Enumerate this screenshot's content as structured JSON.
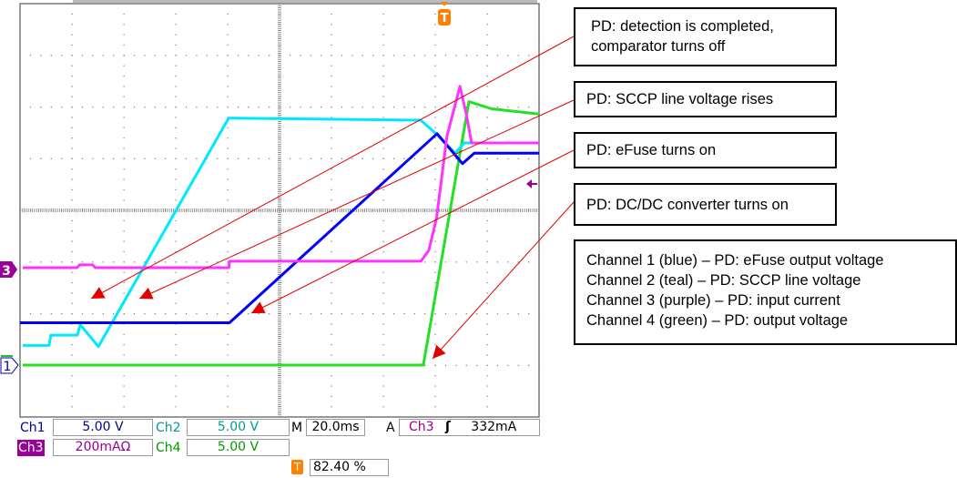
{
  "annotations": [
    {
      "lines": [
        "PD: detection is completed,",
        "comparator turns off"
      ]
    },
    {
      "lines": [
        "PD: SCCP line voltage rises"
      ]
    },
    {
      "lines": [
        "PD: eFuse turns on"
      ]
    },
    {
      "lines": [
        "PD: DC/DC converter turns on"
      ]
    }
  ],
  "legend": [
    "Channel 1 (blue) – PD: eFuse output voltage",
    "Channel 2 (teal) – PD: SCCP line voltage",
    "Channel 3 (purple) – PD: input current",
    "Channel 4 (green) – PD: output voltage"
  ],
  "status": {
    "ch1_label": "Ch1",
    "ch1_scale": "5.00 V",
    "ch2_label": "Ch2",
    "ch2_scale": "5.00 V",
    "ch3_label": "Ch3",
    "ch3_scale": "200mAΩ",
    "ch4_label": "Ch4",
    "ch4_scale": "5.00 V",
    "timebase_label": "M",
    "timebase": "20.0ms",
    "trigger_label": "A",
    "trigger_source": "Ch3",
    "trigger_slope": "ʃ",
    "trigger_level": "332mA",
    "trigger_position_icon": "T",
    "trigger_position": "82.40 %"
  },
  "markers": {
    "ch3": "3",
    "ch1": "1",
    "trigger": "T"
  },
  "colors": {
    "ch1": "#0000ff",
    "ch2": "#00e8ff",
    "ch3": "#ff33ff",
    "ch4": "#22e022",
    "arrow": "#e00000",
    "ch3_label_bg": "#990099",
    "trigger": "#ff8000"
  },
  "chart_data": {
    "type": "line",
    "xlabel": "",
    "ylabel": "",
    "x_unit": "ms",
    "xlim": [
      0,
      200
    ],
    "grid": true,
    "series": [
      {
        "channel": "Ch1",
        "unit": "V",
        "color": "#0000ff",
        "x": [
          0,
          80.7,
          160.7,
          170.5,
          175,
          200
        ],
        "y": [
          4.1,
          4.1,
          22.4,
          19.5,
          20.5,
          20.5
        ]
      },
      {
        "channel": "Ch2",
        "unit": "V",
        "color": "#00e8ff",
        "x": [
          1,
          11.2,
          11.9,
          22.1,
          23.2,
          30.2,
          80.4,
          154.4,
          160.7,
          167.7,
          171.2,
          200
        ],
        "y": [
          1.9,
          1.9,
          2.9,
          2.9,
          3.9,
          1.8,
          23.9,
          23.7,
          22.3,
          20.5,
          21.5,
          21.5
        ]
      },
      {
        "channel": "Ch3",
        "unit": "mA",
        "color": "#ff33ff",
        "x": [
          1,
          22,
          23,
          28,
          29,
          80.5,
          80.7,
          154.5,
          157.5,
          160.5,
          164.5,
          169.5,
          172,
          174,
          200
        ],
        "y": [
          7,
          7,
          18,
          18,
          7,
          7,
          32,
          32,
          74,
          198,
          515,
          709,
          600,
          490,
          490
        ]
      },
      {
        "channel": "Ch4",
        "unit": "V",
        "color": "#22e022",
        "x": [
          1,
          155.4,
          173,
          181.7,
          200
        ],
        "y": [
          0,
          0,
          25.5,
          24.8,
          24.3
        ]
      }
    ]
  }
}
